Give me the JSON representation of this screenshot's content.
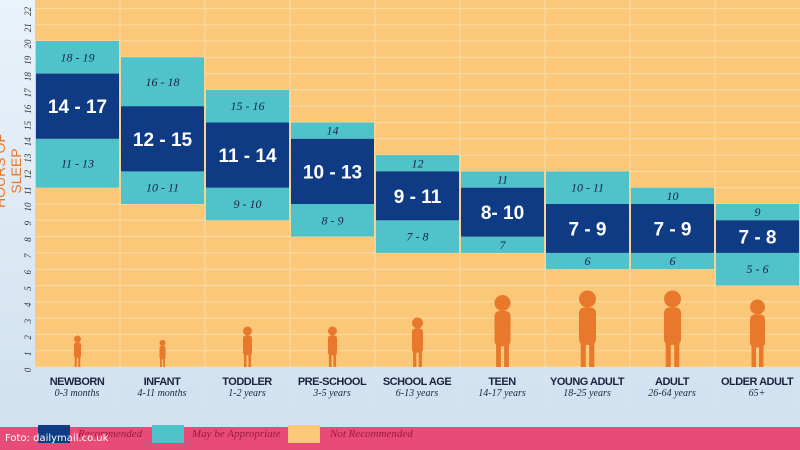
{
  "chart_data": {
    "type": "bar",
    "ylabel": "HOURS OF SLEEP",
    "ylim": [
      0,
      22
    ],
    "yticks": [
      0,
      1,
      2,
      3,
      4,
      5,
      6,
      7,
      8,
      9,
      10,
      11,
      12,
      13,
      14,
      15,
      16,
      17,
      18,
      19,
      20,
      21,
      22
    ],
    "grid": true,
    "legend_position": "bottom-left",
    "legend": [
      "Recommended",
      "May be Appropriate",
      "Not Recommended"
    ],
    "colors": {
      "recommended": "#0f3a84",
      "may_be_appropriate": "#4fc3c9",
      "not_recommended": "#fbc87a"
    },
    "categories": [
      {
        "name": "NEWBORN",
        "age": "0-3 months",
        "recommended": [
          14,
          17
        ],
        "rec_label": "14 - 17",
        "may_low": [
          11,
          13
        ],
        "may_low_label": "11 - 13",
        "may_high": [
          18,
          19
        ],
        "may_high_label": "18 - 19"
      },
      {
        "name": "INFANT",
        "age": "4-11 months",
        "recommended": [
          12,
          15
        ],
        "rec_label": "12 - 15",
        "may_low": [
          10,
          11
        ],
        "may_low_label": "10 - 11",
        "may_high": [
          16,
          18
        ],
        "may_high_label": "16 - 18"
      },
      {
        "name": "TODDLER",
        "age": "1-2 years",
        "recommended": [
          11,
          14
        ],
        "rec_label": "11 - 14",
        "may_low": [
          9,
          10
        ],
        "may_low_label": "9 - 10",
        "may_high": [
          15,
          16
        ],
        "may_high_label": "15 - 16"
      },
      {
        "name": "PRE-SCHOOL",
        "age": "3-5 years",
        "recommended": [
          10,
          13
        ],
        "rec_label": "10 - 13",
        "may_low": [
          8,
          9
        ],
        "may_low_label": "8 - 9",
        "may_high": [
          14,
          14
        ],
        "may_high_label": "14"
      },
      {
        "name": "SCHOOL AGE",
        "age": "6-13 years",
        "recommended": [
          9,
          11
        ],
        "rec_label": "9 - 11",
        "may_low": [
          7,
          8
        ],
        "may_low_label": "7 - 8",
        "may_high": [
          12,
          12
        ],
        "may_high_label": "12"
      },
      {
        "name": "TEEN",
        "age": "14-17 years",
        "recommended": [
          8,
          10
        ],
        "rec_label": "8- 10",
        "may_low": [
          7,
          7
        ],
        "may_low_label": "7",
        "may_high": [
          11,
          11
        ],
        "may_high_label": "11"
      },
      {
        "name": "YOUNG ADULT",
        "age": "18-25 years",
        "recommended": [
          7,
          9
        ],
        "rec_label": "7 - 9",
        "may_low": [
          6,
          6
        ],
        "may_low_label": "6",
        "may_high": [
          10,
          11
        ],
        "may_high_label": "10 - 11"
      },
      {
        "name": "ADULT",
        "age": "26-64 years",
        "recommended": [
          7,
          9
        ],
        "rec_label": "7 - 9",
        "may_low": [
          6,
          6
        ],
        "may_low_label": "6",
        "may_high": [
          10,
          10
        ],
        "may_high_label": "10"
      },
      {
        "name": "OLDER ADULT",
        "age": "65+",
        "recommended": [
          7,
          8
        ],
        "rec_label": "7 - 8",
        "may_low": [
          5,
          6
        ],
        "may_low_label": "5 - 6",
        "may_high": [
          9,
          9
        ],
        "may_high_label": "9"
      }
    ]
  },
  "footer": {
    "credit": "Foto: dailymail.co.uk",
    "colors": {
      "bar": "#e84b78"
    }
  }
}
